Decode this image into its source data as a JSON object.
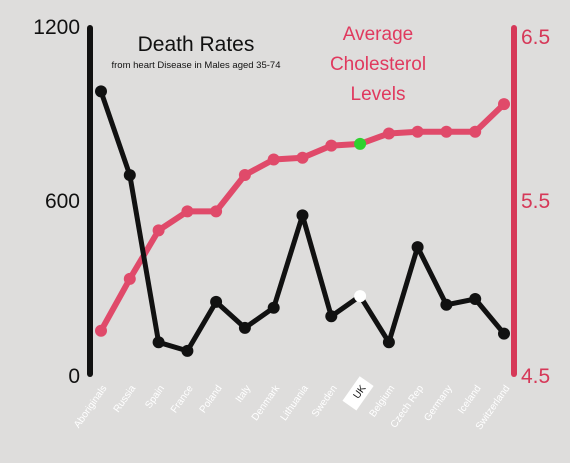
{
  "chart_data": {
    "type": "line",
    "title_left": "Death Rates",
    "subtitle_left": "from heart Disease in Males aged 35-74",
    "title_right": [
      "Average",
      "Cholesterol",
      "Levels"
    ],
    "categories": [
      "Aboriginals",
      "Russia",
      "Spain",
      "France",
      "Poland",
      "Italy",
      "Denmark",
      "Lithuania",
      "Sweden",
      "UK",
      "Belgium",
      "Czech Rep",
      "Germany",
      "Iceland",
      "Switzerland"
    ],
    "highlight_category": "UK",
    "left_axis": {
      "ylim": [
        0,
        1200
      ],
      "ticks": [
        "0",
        "600",
        "1200"
      ],
      "color": "#111111"
    },
    "right_axis": {
      "ylim": [
        4.5,
        6.5
      ],
      "ticks": [
        "4.5",
        "5.5",
        "6.5"
      ],
      "color": "#d63858"
    },
    "series": [
      {
        "axis": "left",
        "color": "#111111",
        "values": [
          980,
          690,
          110,
          80,
          250,
          160,
          230,
          550,
          200,
          270,
          110,
          440,
          240,
          260,
          140
        ],
        "highlight_color": "#ffffff"
      },
      {
        "axis": "right",
        "color": "#e04a6a",
        "values": [
          4.75,
          5.05,
          5.33,
          5.44,
          5.44,
          5.65,
          5.74,
          5.75,
          5.82,
          5.83,
          5.89,
          5.9,
          5.9,
          5.9,
          6.06
        ],
        "highlight_color": "#2fd12f"
      }
    ]
  }
}
